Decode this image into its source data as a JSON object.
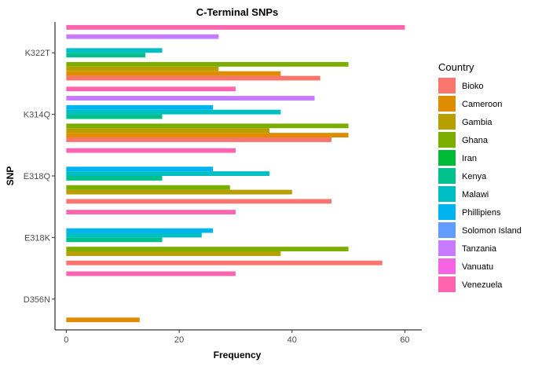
{
  "chart_data": {
    "type": "bar",
    "orientation": "horizontal",
    "title": "C-Terminal SNPs",
    "xlabel": "Frequency",
    "ylabel": "SNP",
    "xlim": [
      -2,
      63
    ],
    "x_ticks": [
      0,
      20,
      40,
      60
    ],
    "grid": false,
    "legend_position": "right",
    "legend_title": "Country",
    "categories": [
      "K322T",
      "K314Q",
      "E318Q",
      "E318K",
      "D356N"
    ],
    "series": [
      {
        "name": "Bioko",
        "color": "#F8766D",
        "values": [
          45,
          47,
          47,
          56,
          0
        ]
      },
      {
        "name": "Cameroon",
        "color": "#DE8C00",
        "values": [
          38,
          50,
          0,
          0,
          13
        ]
      },
      {
        "name": "Gambia",
        "color": "#B79F00",
        "values": [
          27,
          36,
          40,
          38,
          0
        ]
      },
      {
        "name": "Ghana",
        "color": "#7CAE00",
        "values": [
          50,
          50,
          29,
          50,
          0
        ]
      },
      {
        "name": "Iran",
        "color": "#00BA38",
        "values": [
          0,
          0,
          0,
          0,
          0
        ]
      },
      {
        "name": "Kenya",
        "color": "#00C08B",
        "values": [
          14,
          17,
          17,
          17,
          0
        ]
      },
      {
        "name": "Malawi",
        "color": "#00BFC4",
        "values": [
          17,
          38,
          36,
          24,
          0
        ]
      },
      {
        "name": "Phillipiens",
        "color": "#00B4F0",
        "values": [
          0,
          26,
          26,
          26,
          0
        ]
      },
      {
        "name": "Solomon Island",
        "color": "#619CFF",
        "values": [
          0,
          0,
          0,
          0,
          0
        ]
      },
      {
        "name": "Tanzania",
        "color": "#C77CFF",
        "values": [
          27,
          44,
          0,
          0,
          0
        ]
      },
      {
        "name": "Vanuatu",
        "color": "#F564E3",
        "values": [
          0,
          0,
          0,
          0,
          0
        ]
      },
      {
        "name": "Venezuela",
        "color": "#FF64B0",
        "values": [
          60,
          30,
          30,
          30,
          30
        ]
      }
    ]
  }
}
